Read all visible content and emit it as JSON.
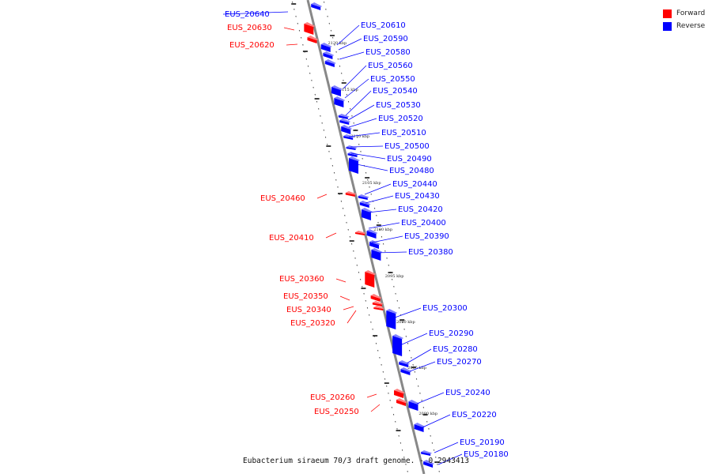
{
  "caption": "Eubacterium siraeum 70/3 draft genome. - 0.2943413",
  "legend": [
    {
      "label": "Forward",
      "color": "#ff0000"
    },
    {
      "label": "Reverse",
      "color": "#0000ff"
    }
  ],
  "ticks": [
    "2120 kbp",
    "2115 kbp",
    "2110 kbp",
    "2105 kbp",
    "2100 kbp",
    "2095 kbp",
    "2090 kbp",
    "2085 kbp",
    "2080 kbp"
  ],
  "genes": [
    {
      "id": "EUS_20640",
      "strand": "reverse"
    },
    {
      "id": "EUS_20630",
      "strand": "forward"
    },
    {
      "id": "EUS_20620",
      "strand": "forward"
    },
    {
      "id": "EUS_20610",
      "strand": "reverse"
    },
    {
      "id": "EUS_20590",
      "strand": "reverse"
    },
    {
      "id": "EUS_20580",
      "strand": "reverse"
    },
    {
      "id": "EUS_20560",
      "strand": "reverse"
    },
    {
      "id": "EUS_20550",
      "strand": "reverse"
    },
    {
      "id": "EUS_20540",
      "strand": "reverse"
    },
    {
      "id": "EUS_20530",
      "strand": "reverse"
    },
    {
      "id": "EUS_20520",
      "strand": "reverse"
    },
    {
      "id": "EUS_20510",
      "strand": "reverse"
    },
    {
      "id": "EUS_20500",
      "strand": "reverse"
    },
    {
      "id": "EUS_20490",
      "strand": "reverse"
    },
    {
      "id": "EUS_20480",
      "strand": "reverse"
    },
    {
      "id": "EUS_20460",
      "strand": "forward"
    },
    {
      "id": "EUS_20440",
      "strand": "reverse"
    },
    {
      "id": "EUS_20430",
      "strand": "reverse"
    },
    {
      "id": "EUS_20420",
      "strand": "reverse"
    },
    {
      "id": "EUS_20410",
      "strand": "forward"
    },
    {
      "id": "EUS_20400",
      "strand": "reverse"
    },
    {
      "id": "EUS_20390",
      "strand": "reverse"
    },
    {
      "id": "EUS_20380",
      "strand": "reverse"
    },
    {
      "id": "EUS_20360",
      "strand": "forward"
    },
    {
      "id": "EUS_20350",
      "strand": "forward"
    },
    {
      "id": "EUS_20340",
      "strand": "forward"
    },
    {
      "id": "EUS_20320",
      "strand": "forward"
    },
    {
      "id": "EUS_20300",
      "strand": "reverse"
    },
    {
      "id": "EUS_20290",
      "strand": "reverse"
    },
    {
      "id": "EUS_20280",
      "strand": "reverse"
    },
    {
      "id": "EUS_20270",
      "strand": "reverse"
    },
    {
      "id": "EUS_20260",
      "strand": "forward"
    },
    {
      "id": "EUS_20250",
      "strand": "forward"
    },
    {
      "id": "EUS_20240",
      "strand": "reverse"
    },
    {
      "id": "EUS_20220",
      "strand": "reverse"
    },
    {
      "id": "EUS_20190",
      "strand": "reverse"
    },
    {
      "id": "EUS_20180",
      "strand": "reverse"
    }
  ]
}
